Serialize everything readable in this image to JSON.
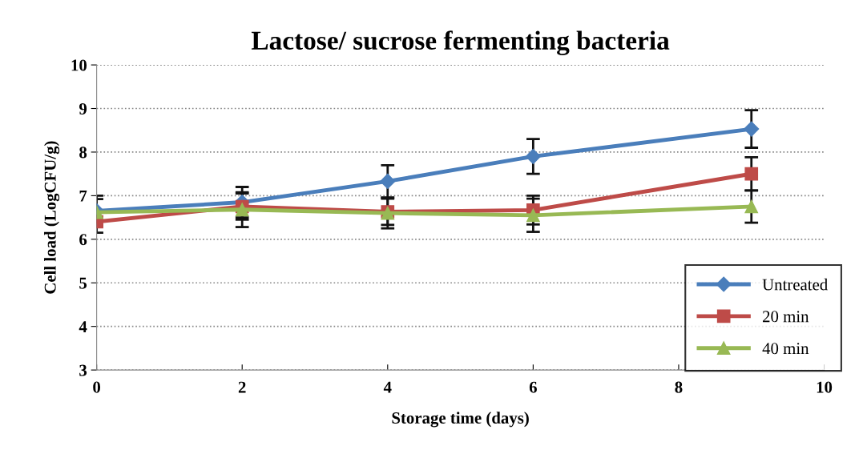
{
  "chart_data": {
    "type": "line",
    "title": "Lactose/ sucrose fermenting bacteria",
    "xlabel": "Storage time (days)",
    "ylabel": "Cell load (LogCFU/g)",
    "x": [
      0,
      2,
      4,
      6,
      9
    ],
    "series": [
      {
        "name": "Untreated",
        "color": "#4a7ebb",
        "marker": "diamond",
        "values": [
          6.65,
          6.85,
          7.33,
          7.9,
          8.53
        ],
        "errors": [
          0.35,
          0.35,
          0.37,
          0.4,
          0.43
        ]
      },
      {
        "name": "20 min",
        "color": "#be4b48",
        "marker": "square",
        "values": [
          6.4,
          6.75,
          6.63,
          6.67,
          7.5
        ],
        "errors": [
          0.25,
          0.3,
          0.3,
          0.33,
          0.38
        ]
      },
      {
        "name": "40 min",
        "color": "#98b954",
        "marker": "triangle",
        "values": [
          6.62,
          6.68,
          6.6,
          6.55,
          6.75
        ],
        "errors": [
          0.3,
          0.4,
          0.35,
          0.38,
          0.37
        ]
      }
    ],
    "xlim": [
      0,
      10
    ],
    "xticks": [
      0,
      2,
      4,
      6,
      8,
      10
    ],
    "ylim": [
      3,
      10
    ],
    "yticks": [
      3,
      4,
      5,
      6,
      7,
      8,
      9,
      10
    ],
    "grid": "y",
    "legend": "bottom right",
    "line_style": "solid"
  }
}
